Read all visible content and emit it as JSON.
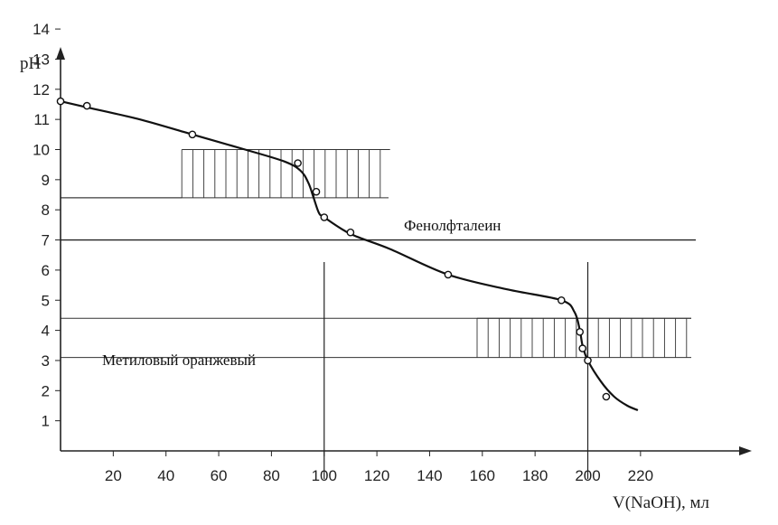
{
  "chart_data": {
    "type": "line",
    "xlabel": "V(NaOH), мл",
    "ylabel": "pH",
    "xlim": [
      0,
      240
    ],
    "ylim": [
      0,
      15
    ],
    "x_ticks": [
      20,
      40,
      60,
      80,
      100,
      120,
      140,
      160,
      180,
      200,
      220
    ],
    "y_ticks": [
      1,
      2,
      3,
      4,
      5,
      6,
      7,
      8,
      9,
      10,
      11,
      12,
      13,
      14
    ],
    "series": [
      {
        "curve": [
          [
            0,
            11.6
          ],
          [
            10,
            11.4
          ],
          [
            30,
            11.0
          ],
          [
            50,
            10.5
          ],
          [
            70,
            10.0
          ],
          [
            85,
            9.6
          ],
          [
            91,
            9.3
          ],
          [
            94,
            8.9
          ],
          [
            96,
            8.4
          ],
          [
            98,
            7.9
          ],
          [
            100,
            7.75
          ],
          [
            110,
            7.2
          ],
          [
            125,
            6.7
          ],
          [
            147,
            5.85
          ],
          [
            170,
            5.35
          ],
          [
            190,
            5.0
          ],
          [
            195,
            4.6
          ],
          [
            197,
            4.0
          ],
          [
            198,
            3.5
          ],
          [
            200,
            3.0
          ],
          [
            205,
            2.3
          ],
          [
            210,
            1.8
          ],
          [
            215,
            1.5
          ],
          [
            219,
            1.35
          ]
        ],
        "markers": [
          [
            0,
            11.6
          ],
          [
            10,
            11.45
          ],
          [
            50,
            10.5
          ],
          [
            90,
            9.55
          ],
          [
            97,
            8.6
          ],
          [
            100,
            7.75
          ],
          [
            110,
            7.25
          ],
          [
            147,
            5.85
          ],
          [
            190,
            5.0
          ],
          [
            197,
            3.95
          ],
          [
            198,
            3.4
          ],
          [
            200,
            3.0
          ],
          [
            207,
            1.8
          ]
        ]
      }
    ],
    "reference_lines": {
      "horizontal_ph": [
        7.0
      ],
      "vertical_ml": [
        100,
        200
      ]
    },
    "indicators": [
      {
        "name": "Фенолфталеин",
        "ph_range": [
          8.4,
          10.0
        ],
        "x_range": [
          46,
          125
        ]
      },
      {
        "name": "Метиловый оранжевый",
        "ph_range": [
          3.1,
          4.4
        ],
        "x_range": [
          158,
          240
        ]
      }
    ]
  }
}
